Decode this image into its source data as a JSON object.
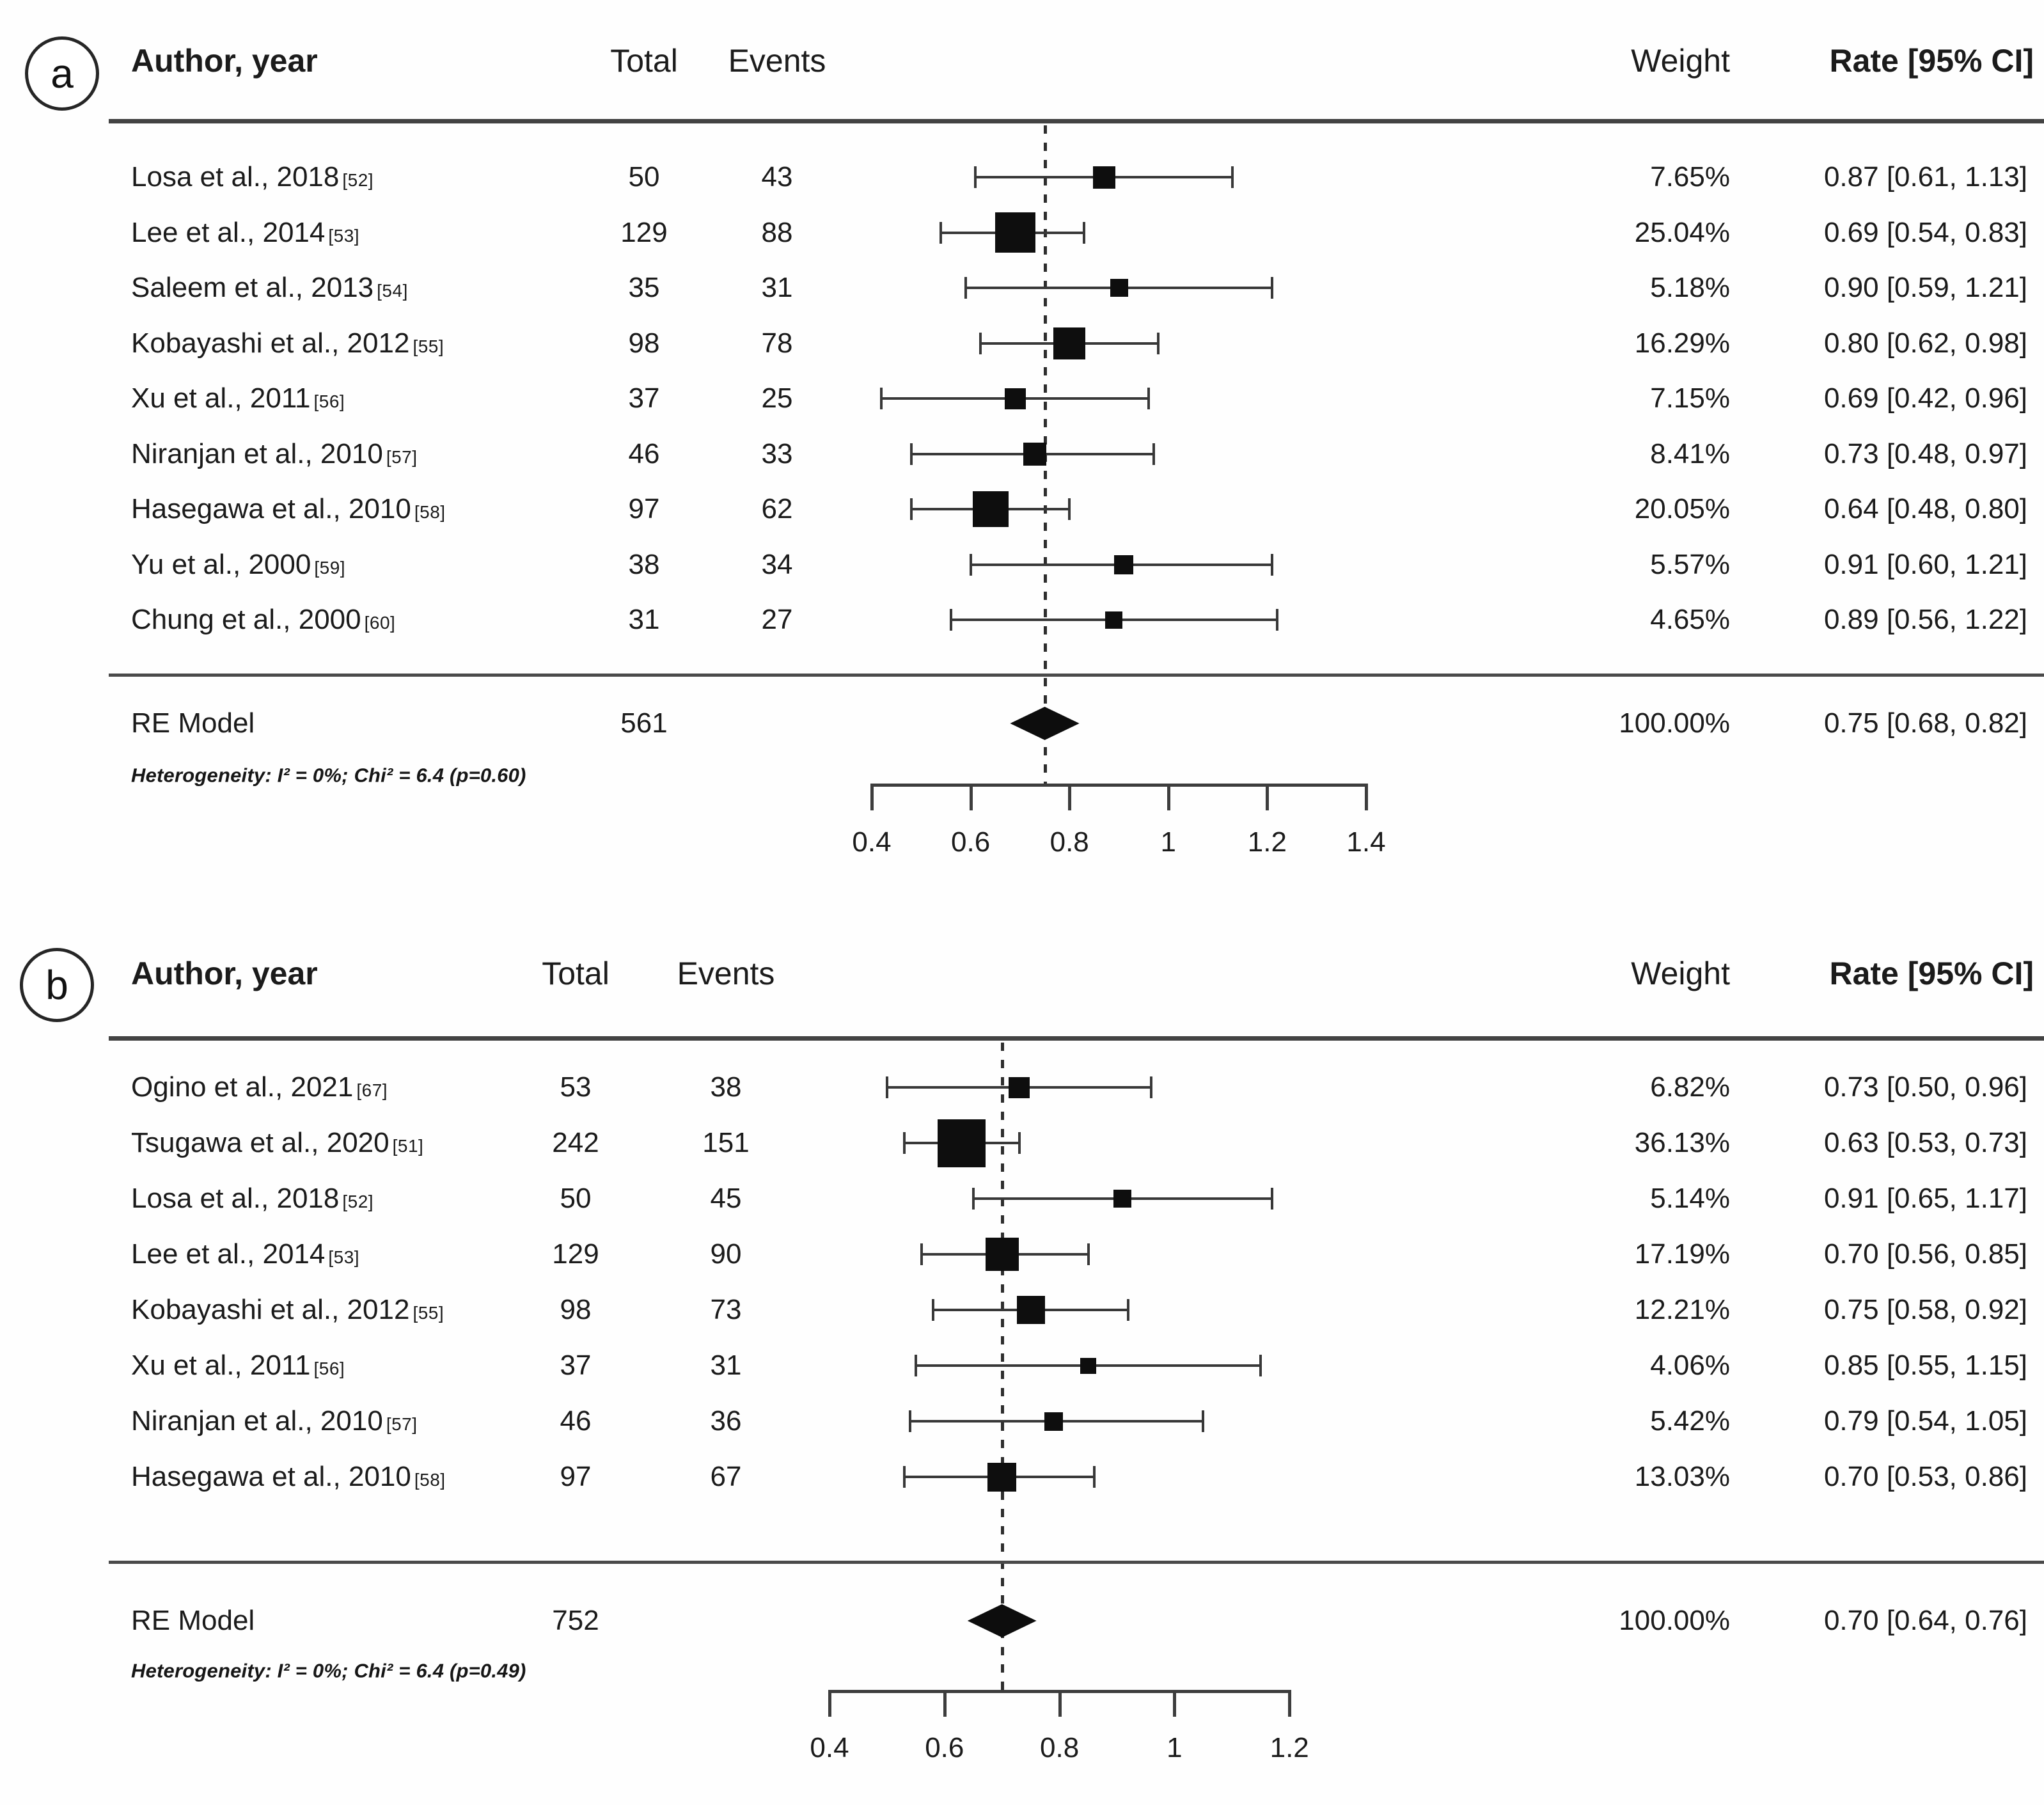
{
  "chart_data": [
    {
      "type": "forest",
      "panel_label": "a",
      "columns": {
        "author": "Author, year",
        "total": "Total",
        "events": "Events",
        "weight": "Weight",
        "rate": "Rate [95% CI]"
      },
      "studies": [
        {
          "author": "Losa et al., 2018",
          "ref": "[52]",
          "total": 50,
          "events": 43,
          "weight": "7.65%",
          "weight_pct": 7.65,
          "rate": "0.87 [0.61, 1.13]",
          "est": 0.87,
          "lo": 0.61,
          "hi": 1.13
        },
        {
          "author": "Lee et al., 2014",
          "ref": "[53]",
          "total": 129,
          "events": 88,
          "weight": "25.04%",
          "weight_pct": 25.04,
          "rate": "0.69 [0.54, 0.83]",
          "est": 0.69,
          "lo": 0.54,
          "hi": 0.83
        },
        {
          "author": "Saleem et al., 2013",
          "ref": "[54]",
          "total": 35,
          "events": 31,
          "weight": "5.18%",
          "weight_pct": 5.18,
          "rate": "0.90 [0.59, 1.21]",
          "est": 0.9,
          "lo": 0.59,
          "hi": 1.21
        },
        {
          "author": "Kobayashi et al., 2012",
          "ref": "[55]",
          "total": 98,
          "events": 78,
          "weight": "16.29%",
          "weight_pct": 16.29,
          "rate": "0.80 [0.62, 0.98]",
          "est": 0.8,
          "lo": 0.62,
          "hi": 0.98
        },
        {
          "author": "Xu et al., 2011",
          "ref": "[56]",
          "total": 37,
          "events": 25,
          "weight": "7.15%",
          "weight_pct": 7.15,
          "rate": "0.69 [0.42, 0.96]",
          "est": 0.69,
          "lo": 0.42,
          "hi": 0.96
        },
        {
          "author": "Niranjan et al., 2010",
          "ref": "[57]",
          "total": 46,
          "events": 33,
          "weight": "8.41%",
          "weight_pct": 8.41,
          "rate": "0.73 [0.48, 0.97]",
          "est": 0.73,
          "lo": 0.48,
          "hi": 0.97
        },
        {
          "author": "Hasegawa et al., 2010",
          "ref": "[58]",
          "total": 97,
          "events": 62,
          "weight": "20.05%",
          "weight_pct": 20.05,
          "rate": "0.64 [0.48, 0.80]",
          "est": 0.64,
          "lo": 0.48,
          "hi": 0.8
        },
        {
          "author": "Yu et al., 2000",
          "ref": "[59]",
          "total": 38,
          "events": 34,
          "weight": "5.57%",
          "weight_pct": 5.57,
          "rate": "0.91 [0.60, 1.21]",
          "est": 0.91,
          "lo": 0.6,
          "hi": 1.21
        },
        {
          "author": "Chung et al., 2000",
          "ref": "[60]",
          "total": 31,
          "events": 27,
          "weight": "4.65%",
          "weight_pct": 4.65,
          "rate": "0.89 [0.56, 1.22]",
          "est": 0.89,
          "lo": 0.56,
          "hi": 1.22
        }
      ],
      "summary": {
        "label": "RE Model",
        "total": "561",
        "weight": "100.00%",
        "rate": "0.75 [0.68, 0.82]",
        "est": 0.75,
        "lo": 0.68,
        "hi": 0.82
      },
      "heterogeneity": "Heterogeneity: I² = 0%; Chi² = 6.4 (p=0.60)",
      "x_axis": {
        "tick_labels": [
          "0.4",
          "0.6",
          "0.8",
          "1",
          "1.2",
          "1.4"
        ],
        "tick_values": [
          0.4,
          0.6,
          0.8,
          1.0,
          1.2,
          1.4
        ],
        "range": [
          0.4,
          1.4
        ],
        "ref_line": 0.75,
        "grid": false
      }
    },
    {
      "type": "forest",
      "panel_label": "b",
      "columns": {
        "author": "Author, year",
        "total": "Total",
        "events": "Events",
        "weight": "Weight",
        "rate": "Rate [95% CI]"
      },
      "studies": [
        {
          "author": "Ogino et al., 2021",
          "ref": "[67]",
          "total": 53,
          "events": 38,
          "weight": "6.82%",
          "weight_pct": 6.82,
          "rate": "0.73 [0.50, 0.96]",
          "est": 0.73,
          "lo": 0.5,
          "hi": 0.96
        },
        {
          "author": "Tsugawa et al., 2020",
          "ref": "[51]",
          "total": 242,
          "events": 151,
          "weight": "36.13%",
          "weight_pct": 36.13,
          "rate": "0.63 [0.53, 0.73]",
          "est": 0.63,
          "lo": 0.53,
          "hi": 0.73
        },
        {
          "author": "Losa et al., 2018",
          "ref": "[52]",
          "total": 50,
          "events": 45,
          "weight": "5.14%",
          "weight_pct": 5.14,
          "rate": "0.91 [0.65, 1.17]",
          "est": 0.91,
          "lo": 0.65,
          "hi": 1.17
        },
        {
          "author": "Lee et al., 2014",
          "ref": "[53]",
          "total": 129,
          "events": 90,
          "weight": "17.19%",
          "weight_pct": 17.19,
          "rate": "0.70 [0.56, 0.85]",
          "est": 0.7,
          "lo": 0.56,
          "hi": 0.85
        },
        {
          "author": "Kobayashi et al., 2012",
          "ref": "[55]",
          "total": 98,
          "events": 73,
          "weight": "12.21%",
          "weight_pct": 12.21,
          "rate": "0.75 [0.58, 0.92]",
          "est": 0.75,
          "lo": 0.58,
          "hi": 0.92
        },
        {
          "author": "Xu et al., 2011",
          "ref": "[56]",
          "total": 37,
          "events": 31,
          "weight": "4.06%",
          "weight_pct": 4.06,
          "rate": "0.85 [0.55, 1.15]",
          "est": 0.85,
          "lo": 0.55,
          "hi": 1.15
        },
        {
          "author": "Niranjan et al., 2010",
          "ref": "[57]",
          "total": 46,
          "events": 36,
          "weight": "5.42%",
          "weight_pct": 5.42,
          "rate": "0.79 [0.54, 1.05]",
          "est": 0.79,
          "lo": 0.54,
          "hi": 1.05
        },
        {
          "author": "Hasegawa et al., 2010",
          "ref": "[58]",
          "total": 97,
          "events": 67,
          "weight": "13.03%",
          "weight_pct": 13.03,
          "rate": "0.70 [0.53, 0.86]",
          "est": 0.7,
          "lo": 0.53,
          "hi": 0.86
        }
      ],
      "summary": {
        "label": "RE Model",
        "total": "752",
        "weight": "100.00%",
        "rate": "0.70 [0.64, 0.76]",
        "est": 0.7,
        "lo": 0.64,
        "hi": 0.76
      },
      "heterogeneity": "Heterogeneity: I² = 0%; Chi² = 6.4 (p=0.49)",
      "x_axis": {
        "tick_labels": [
          "0.4",
          "0.6",
          "0.8",
          "1",
          "1.2"
        ],
        "tick_values": [
          0.4,
          0.6,
          0.8,
          1.0,
          1.2
        ],
        "range": [
          0.4,
          1.2
        ],
        "ref_line": 0.7,
        "grid": false
      }
    }
  ]
}
